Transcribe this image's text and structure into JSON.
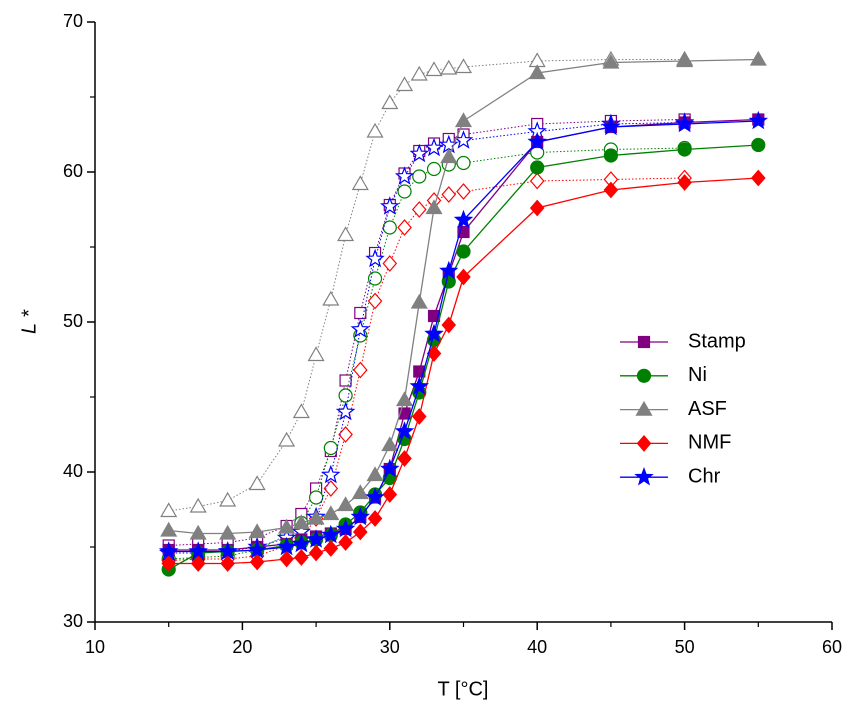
{
  "chart_data": {
    "type": "line",
    "xlabel": "T [°C]",
    "ylabel": "L *",
    "xlim": [
      10,
      60
    ],
    "xticks": [
      10,
      20,
      30,
      40,
      50,
      60
    ],
    "ylim": [
      30,
      70
    ],
    "yticks": [
      30,
      40,
      50,
      60,
      70
    ],
    "legend": "right",
    "series": [
      {
        "name": "Stamp",
        "color": "#800080",
        "marker": "square",
        "filled": true,
        "line": "solid",
        "x": [
          15,
          17,
          19,
          21,
          23,
          24,
          25,
          26,
          27,
          28,
          29,
          30,
          31,
          32,
          33,
          34,
          35,
          40,
          45,
          50,
          55
        ],
        "values": [
          34.8,
          34.8,
          34.8,
          35,
          35.2,
          35.5,
          35.7,
          35.9,
          36.2,
          37,
          38.3,
          40.2,
          43.9,
          46.7,
          50.4,
          53.2,
          56,
          62,
          63,
          63.3,
          63.5
        ]
      },
      {
        "name": "Ni",
        "color": "#008000",
        "marker": "circle",
        "filled": true,
        "line": "solid",
        "x": [
          15,
          17,
          19,
          21,
          23,
          24,
          25,
          26,
          27,
          28,
          29,
          30,
          31,
          32,
          33,
          34,
          35,
          40,
          45,
          50,
          55
        ],
        "values": [
          33.5,
          34.6,
          34.7,
          34.8,
          35.1,
          35.3,
          35.5,
          35.8,
          36.5,
          37.3,
          38.5,
          39.6,
          42.2,
          45.3,
          48.8,
          52.7,
          54.7,
          60.3,
          61.1,
          61.5,
          61.8
        ]
      },
      {
        "name": "ASF",
        "color": "#808080",
        "marker": "triangle",
        "filled": true,
        "line": "solid",
        "x": [
          15,
          17,
          19,
          21,
          23,
          24,
          25,
          26,
          27,
          28,
          29,
          30,
          31,
          32,
          33,
          34,
          35,
          40,
          45,
          50,
          55
        ],
        "values": [
          36.1,
          35.9,
          35.9,
          36,
          36.3,
          36.6,
          36.9,
          37.2,
          37.8,
          38.6,
          39.8,
          41.8,
          44.8,
          51.3,
          57.6,
          61,
          63.4,
          66.6,
          67.3,
          67.4,
          67.5
        ]
      },
      {
        "name": "NMF",
        "color": "#ff0000",
        "marker": "diamond",
        "filled": true,
        "line": "solid",
        "x": [
          15,
          17,
          19,
          21,
          23,
          24,
          25,
          26,
          27,
          28,
          29,
          30,
          31,
          32,
          33,
          34,
          35,
          40,
          45,
          50,
          55
        ],
        "values": [
          33.9,
          33.9,
          33.9,
          34,
          34.2,
          34.3,
          34.6,
          34.9,
          35.3,
          36,
          36.9,
          38.5,
          40.9,
          43.7,
          47.9,
          49.8,
          53,
          57.6,
          58.8,
          59.3,
          59.6
        ]
      },
      {
        "name": "Chr",
        "color": "#0000ff",
        "marker": "star",
        "filled": true,
        "line": "solid",
        "x": [
          15,
          17,
          19,
          21,
          23,
          24,
          25,
          26,
          27,
          28,
          29,
          30,
          31,
          32,
          33,
          34,
          35,
          40,
          45,
          50,
          55
        ],
        "values": [
          34.7,
          34.7,
          34.7,
          34.8,
          35,
          35.2,
          35.5,
          35.8,
          36.2,
          37,
          38.3,
          40.2,
          42.7,
          45.7,
          49.2,
          53.4,
          56.8,
          62,
          63,
          63.2,
          63.4
        ]
      },
      {
        "color": "#800080",
        "marker": "square",
        "filled": false,
        "line": "dotted",
        "x": [
          15,
          17,
          19,
          21,
          23,
          24,
          25,
          26,
          27,
          28,
          29,
          30,
          31,
          32,
          33,
          34,
          35,
          40,
          45,
          50
        ],
        "values": [
          35.1,
          35.2,
          35.3,
          35.6,
          36.4,
          37.2,
          38.9,
          41.4,
          46.1,
          50.6,
          54.6,
          57.8,
          59.9,
          61.4,
          61.9,
          62.2,
          62.5,
          63.2,
          63.4,
          63.5
        ]
      },
      {
        "color": "#008000",
        "marker": "circle",
        "filled": false,
        "line": "dotted",
        "x": [
          15,
          17,
          19,
          21,
          23,
          24,
          25,
          26,
          27,
          28,
          29,
          30,
          31,
          32,
          33,
          34,
          35,
          40,
          45,
          50
        ],
        "values": [
          34.2,
          34.3,
          34.4,
          34.8,
          35.8,
          36.6,
          38.3,
          41.6,
          45.1,
          49.1,
          52.9,
          56.3,
          58.7,
          59.7,
          60.2,
          60.5,
          60.6,
          61.3,
          61.5,
          61.6
        ]
      },
      {
        "color": "#808080",
        "marker": "triangle",
        "filled": false,
        "line": "dotted",
        "x": [
          15,
          17,
          19,
          21,
          23,
          24,
          25,
          26,
          27,
          28,
          29,
          30,
          31,
          32,
          33,
          34,
          35,
          40,
          45,
          50
        ],
        "values": [
          37.4,
          37.7,
          38.1,
          39.2,
          42.1,
          44,
          47.8,
          51.5,
          55.8,
          59.2,
          62.7,
          64.6,
          65.8,
          66.5,
          66.8,
          66.9,
          67,
          67.4,
          67.5,
          67.5
        ]
      },
      {
        "color": "#ff0000",
        "marker": "diamond",
        "filled": false,
        "line": "dotted",
        "x": [
          15,
          17,
          19,
          21,
          23,
          24,
          25,
          26,
          27,
          28,
          29,
          30,
          31,
          32,
          33,
          34,
          35,
          40,
          45,
          50
        ],
        "values": [
          34.1,
          34.2,
          34.2,
          34.4,
          35.1,
          35.6,
          36.9,
          38.9,
          42.5,
          46.8,
          51.4,
          53.9,
          56.3,
          57.5,
          58.1,
          58.5,
          58.7,
          59.4,
          59.5,
          59.6
        ]
      },
      {
        "color": "#0000ff",
        "marker": "star",
        "filled": false,
        "line": "dotted",
        "x": [
          15,
          17,
          19,
          21,
          23,
          24,
          25,
          26,
          27,
          28,
          29,
          30,
          31,
          32,
          33,
          34,
          35,
          40,
          45,
          50
        ],
        "values": [
          34.6,
          34.6,
          34.7,
          35,
          35.6,
          36,
          37,
          39.8,
          44,
          49.5,
          54.2,
          57.7,
          59.7,
          61.2,
          61.6,
          61.8,
          62.1,
          62.7,
          63.2,
          63.3
        ]
      }
    ]
  }
}
